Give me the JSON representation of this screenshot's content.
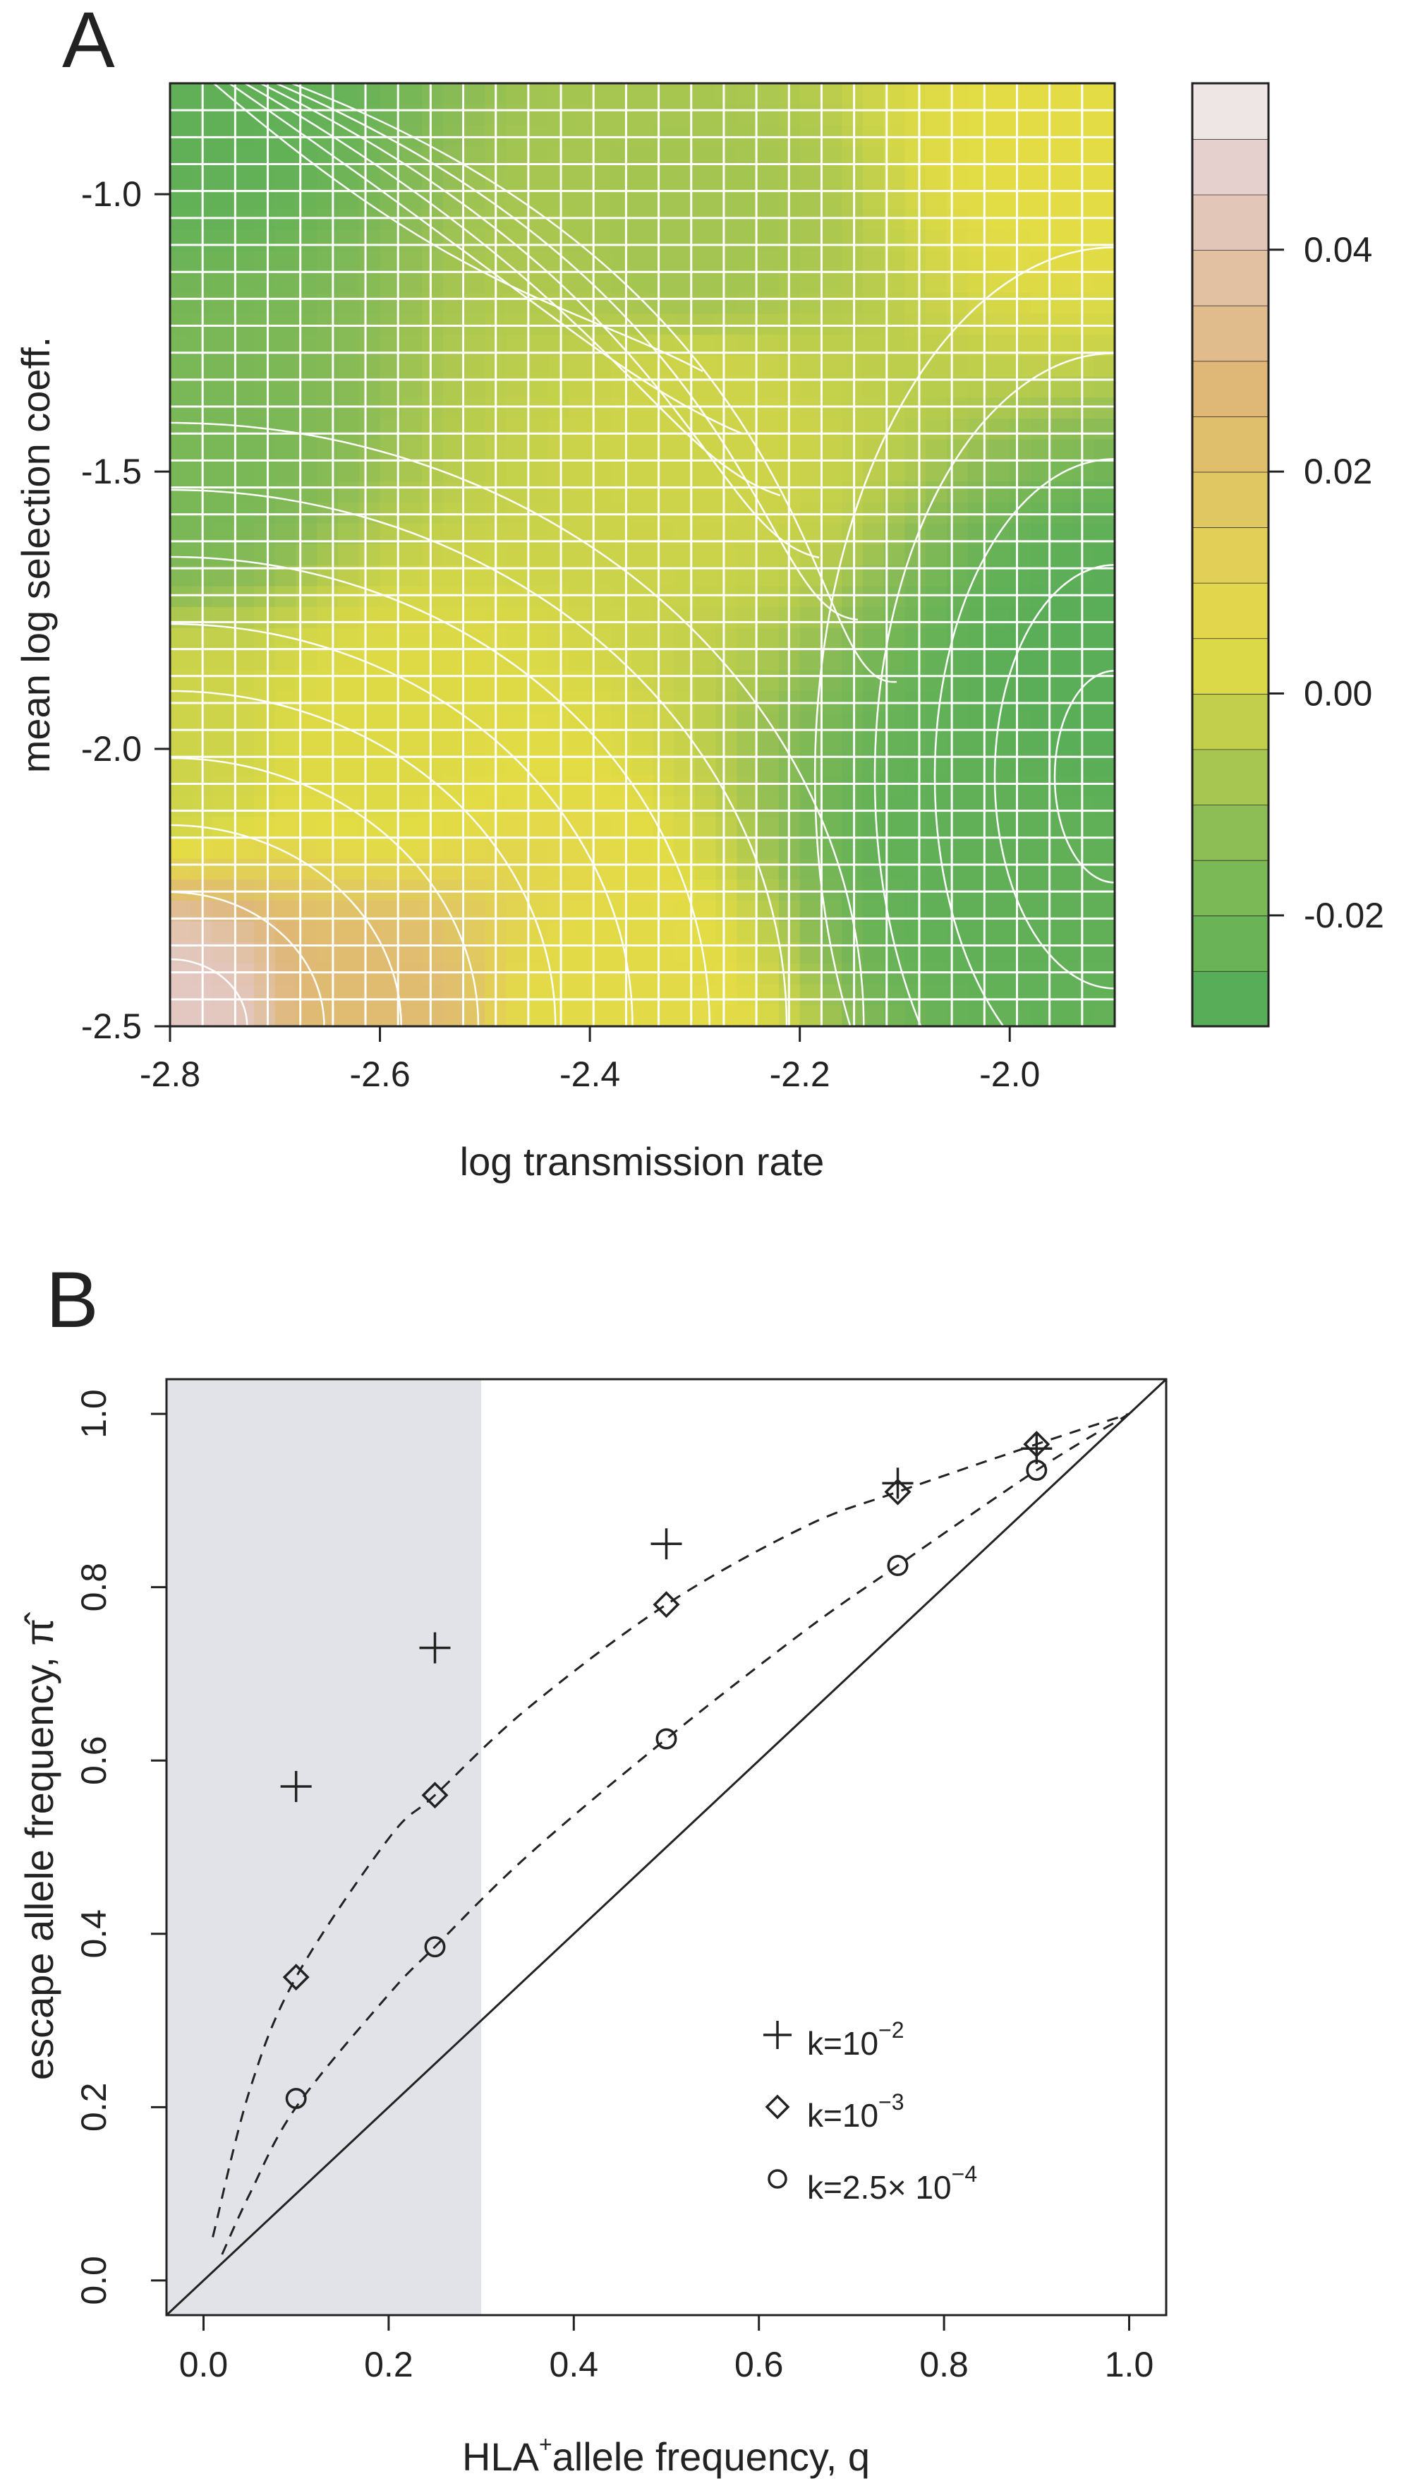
{
  "panels": {
    "a_letter": "A",
    "b_letter": "B"
  },
  "colors": {
    "low_green": "#4fab58",
    "mid_green": "#8fbd55",
    "yellow": "#e3dc45",
    "tan": "#dfb778",
    "pink": "#e3c9c6",
    "top_gray": "#f1f1f1",
    "gridline": "#ffffff",
    "shade": "#e2e3e8",
    "ink": "#222222"
  },
  "chart_data": [
    {
      "type": "heatmap",
      "panel": "A",
      "xlabel": "log transmission rate",
      "ylabel": "mean log selection coeff.",
      "xlim": [
        -2.8,
        -1.9
      ],
      "ylim": [
        -2.5,
        -0.8
      ],
      "xticks": [
        "-2.8",
        "-2.6",
        "-2.4",
        "-2.2",
        "-2.0"
      ],
      "yticks": [
        "-2.5",
        "-2.0",
        "-1.5",
        "-1.0"
      ],
      "grid": true,
      "colorbar": {
        "ticks": [
          "0.04",
          "0.02",
          "0.00",
          "-0.02"
        ],
        "range": [
          -0.03,
          0.055
        ],
        "levels": 17
      },
      "surface_estimates": [
        {
          "x": -2.8,
          "y": -2.5,
          "z": 0.045
        },
        {
          "x": -2.8,
          "y": -2.0,
          "z": 0.0
        },
        {
          "x": -2.8,
          "y": -1.5,
          "z": -0.018
        },
        {
          "x": -2.8,
          "y": -0.8,
          "z": -0.025
        },
        {
          "x": -2.6,
          "y": -2.5,
          "z": 0.025
        },
        {
          "x": -2.6,
          "y": -2.0,
          "z": 0.003
        },
        {
          "x": -2.4,
          "y": -2.5,
          "z": 0.005
        },
        {
          "x": -2.3,
          "y": -1.4,
          "z": 0.0
        },
        {
          "x": -2.3,
          "y": -1.1,
          "z": -0.008
        },
        {
          "x": -2.0,
          "y": -2.2,
          "z": -0.025
        },
        {
          "x": -1.9,
          "y": -1.9,
          "z": -0.027
        },
        {
          "x": -1.95,
          "y": -0.9,
          "z": 0.004
        }
      ]
    },
    {
      "type": "scatter",
      "panel": "B",
      "xlabel": "HLA",
      "xlabel_sup": "+",
      "xlabel_rest": "allele frequency, q",
      "ylabel": "escape allele frequency, ",
      "ylabel_symbol": "π̂",
      "xlim": [
        -0.04,
        1.04
      ],
      "ylim": [
        -0.04,
        1.04
      ],
      "xticks": [
        "0.0",
        "0.2",
        "0.4",
        "0.6",
        "0.8",
        "1.0"
      ],
      "yticks": [
        "0.0",
        "0.2",
        "0.4",
        "0.6",
        "0.8",
        "1.0"
      ],
      "shaded_region": [
        -0.04,
        0.3
      ],
      "series": [
        {
          "legend": "k=10",
          "legend_exp": "−2",
          "marker": "plus",
          "x": [
            0.1,
            0.25,
            0.5,
            0.75,
            0.9
          ],
          "y": [
            0.57,
            0.73,
            0.85,
            0.92,
            0.96
          ]
        },
        {
          "legend": "k=10",
          "legend_exp": "−3",
          "marker": "diamond",
          "x": [
            0.1,
            0.25,
            0.5,
            0.75,
            0.9
          ],
          "y": [
            0.35,
            0.56,
            0.78,
            0.91,
            0.965
          ]
        },
        {
          "legend": "k=2.5× 10",
          "legend_exp": "−4",
          "marker": "circle",
          "x": [
            0.1,
            0.25,
            0.5,
            0.75,
            0.9
          ],
          "y": [
            0.21,
            0.385,
            0.625,
            0.825,
            0.935
          ]
        }
      ],
      "dashed_curves": [
        {
          "x": [
            0.01,
            0.05,
            0.1,
            0.2,
            0.25,
            0.35,
            0.5,
            0.65,
            0.75,
            0.9,
            1.0
          ],
          "y": [
            0.05,
            0.22,
            0.35,
            0.51,
            0.56,
            0.66,
            0.78,
            0.87,
            0.91,
            0.965,
            1.0
          ]
        },
        {
          "x": [
            0.02,
            0.05,
            0.1,
            0.2,
            0.25,
            0.35,
            0.5,
            0.65,
            0.75,
            0.9,
            1.0
          ],
          "y": [
            0.03,
            0.1,
            0.2,
            0.33,
            0.385,
            0.49,
            0.625,
            0.75,
            0.825,
            0.935,
            1.0
          ]
        }
      ],
      "reference_line": "identity"
    }
  ]
}
